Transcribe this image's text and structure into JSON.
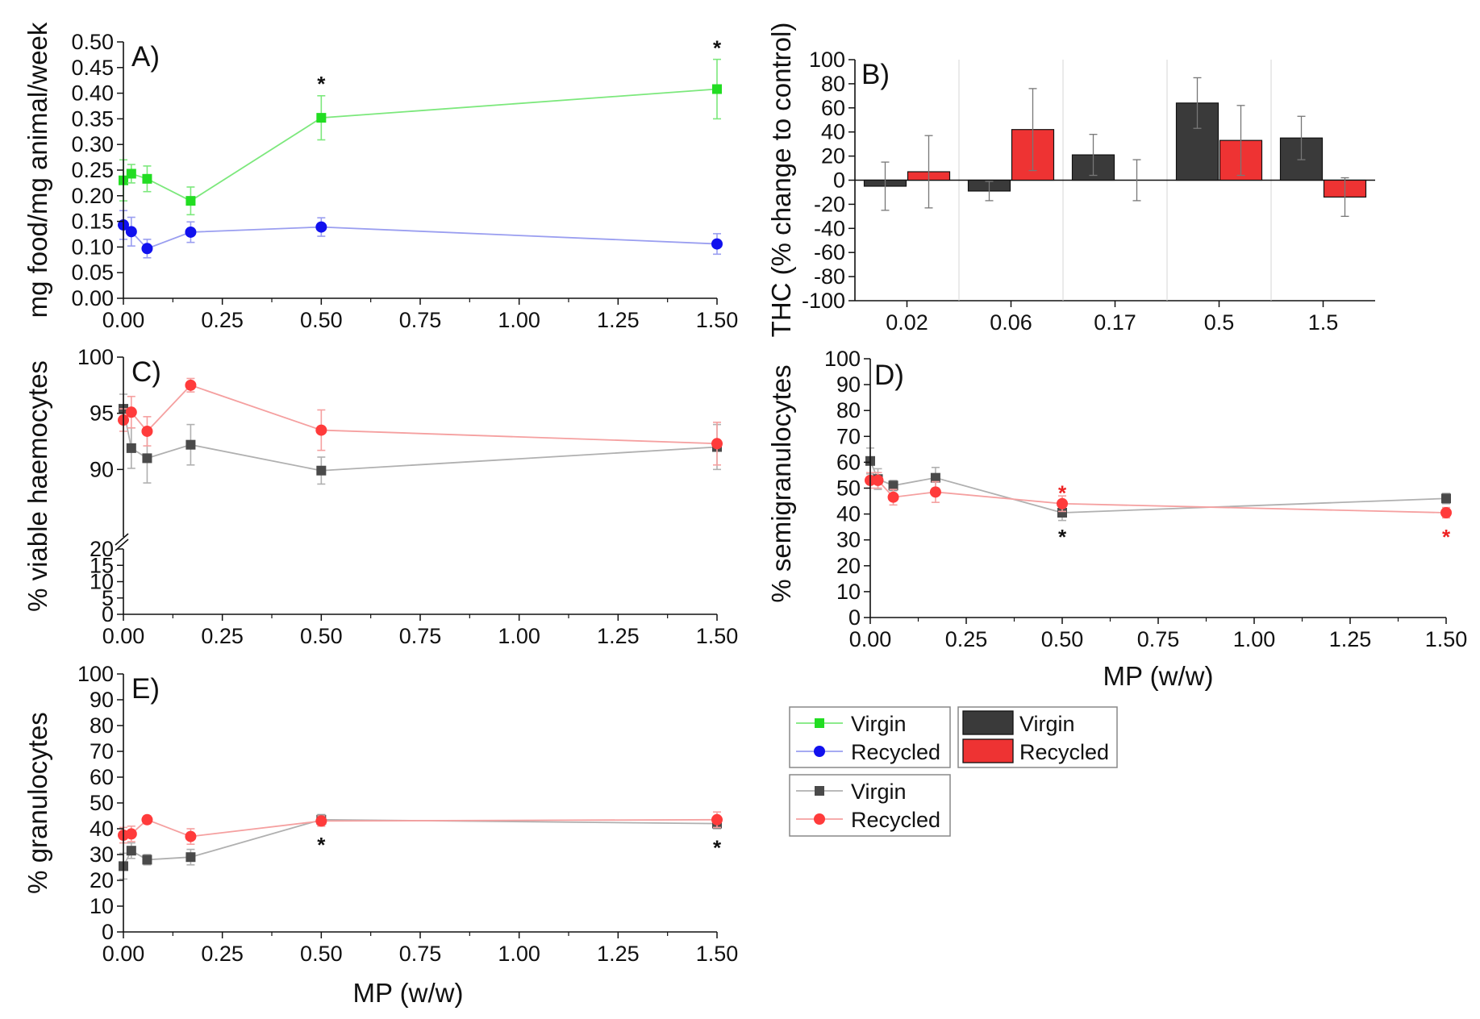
{
  "chart_data": [
    {
      "id": "A",
      "type": "line",
      "panel_label": "A)",
      "ylabel": "mg food/mg animal/week",
      "xlabel": "",
      "xlim": [
        0,
        1.5
      ],
      "ylim": [
        0,
        0.5
      ],
      "xticks": [
        "0.00",
        "0.25",
        "0.50",
        "0.75",
        "1.00",
        "1.25",
        "1.50"
      ],
      "yticks": [
        "0.00",
        "0.05",
        "0.10",
        "0.15",
        "0.20",
        "0.25",
        "0.30",
        "0.35",
        "0.40",
        "0.45",
        "0.50"
      ],
      "series": [
        {
          "name": "Virgin",
          "marker": "square",
          "color": "#22dd22",
          "line": "#7ce87c",
          "x": [
            0,
            0.02,
            0.06,
            0.17,
            0.5,
            1.5
          ],
          "y": [
            0.23,
            0.243,
            0.233,
            0.19,
            0.352,
            0.408
          ],
          "err": [
            0.04,
            0.018,
            0.025,
            0.027,
            0.043,
            0.058
          ]
        },
        {
          "name": "Recycled",
          "marker": "circle",
          "color": "#1111ee",
          "line": "#9a9ef0",
          "x": [
            0,
            0.02,
            0.06,
            0.17,
            0.5,
            1.5
          ],
          "y": [
            0.143,
            0.13,
            0.097,
            0.129,
            0.139,
            0.106
          ],
          "err": [
            0.028,
            0.028,
            0.018,
            0.02,
            0.018,
            0.02
          ]
        }
      ],
      "annotations": [
        {
          "text": "*",
          "x": 0.5,
          "y": 0.42,
          "color": "#111111"
        },
        {
          "text": "*",
          "x": 1.5,
          "y": 0.49,
          "color": "#111111"
        }
      ]
    },
    {
      "id": "B",
      "type": "bar",
      "panel_label": "B)",
      "ylabel": "THC (% change to control)",
      "xlabel": "",
      "categories": [
        "0.02",
        "0.06",
        "0.17",
        "0.5",
        "1.5"
      ],
      "ylim": [
        -100,
        100
      ],
      "yticks": [
        "-100",
        "-80",
        "-60",
        "-40",
        "-20",
        "0",
        "20",
        "40",
        "60",
        "80",
        "100"
      ],
      "series": [
        {
          "name": "Virgin",
          "color": "#3a3a3a",
          "values": [
            -5,
            -9,
            21,
            64,
            35
          ],
          "err": [
            20,
            8,
            17,
            21,
            18
          ]
        },
        {
          "name": "Recycled",
          "color": "#ee3333",
          "values": [
            7,
            42,
            0,
            33,
            -14
          ],
          "err": [
            30,
            34,
            17,
            29,
            16
          ]
        }
      ]
    },
    {
      "id": "C",
      "type": "line",
      "panel_label": "C)",
      "ylabel": "% viable haemocytes",
      "xlabel": "",
      "xlim": [
        0,
        1.5
      ],
      "xticks": [
        "0.00",
        "0.25",
        "0.50",
        "0.75",
        "1.00",
        "1.25",
        "1.50"
      ],
      "upper_ylim": [
        85,
        100
      ],
      "upper_yticks": [
        "90",
        "95",
        "100"
      ],
      "lower_ylim": [
        0,
        20
      ],
      "lower_yticks": [
        "0",
        "5",
        "10",
        "15",
        "20"
      ],
      "series": [
        {
          "name": "Virgin",
          "marker": "square",
          "color": "#4a4a4a",
          "line": "#b0b0b0",
          "x": [
            0,
            0.02,
            0.06,
            0.17,
            0.5,
            1.5
          ],
          "y": [
            95.4,
            91.9,
            91.0,
            92.2,
            89.9,
            92.0
          ],
          "err": [
            1.3,
            1.8,
            2.2,
            1.8,
            1.2,
            2.0
          ]
        },
        {
          "name": "Recycled",
          "marker": "circle",
          "color": "#ff3b3b",
          "line": "#f5a0a0",
          "x": [
            0,
            0.02,
            0.06,
            0.17,
            0.5,
            1.5
          ],
          "y": [
            94.4,
            95.1,
            93.4,
            97.5,
            93.5,
            92.3
          ],
          "err": [
            1.0,
            1.4,
            1.3,
            0.6,
            1.8,
            1.9
          ]
        }
      ]
    },
    {
      "id": "D",
      "type": "line",
      "panel_label": "D)",
      "ylabel": "% semigranulocytes",
      "xlabel": "MP (w/w)",
      "xlim": [
        0,
        1.5
      ],
      "ylim": [
        0,
        100
      ],
      "xticks": [
        "0.00",
        "0.25",
        "0.50",
        "0.75",
        "1.00",
        "1.25",
        "1.50"
      ],
      "yticks": [
        "0",
        "10",
        "20",
        "30",
        "40",
        "50",
        "60",
        "70",
        "80",
        "90",
        "100"
      ],
      "series": [
        {
          "name": "Virgin",
          "marker": "square",
          "color": "#4a4a4a",
          "line": "#b0b0b0",
          "x": [
            0,
            0.02,
            0.06,
            0.17,
            0.5,
            1.5
          ],
          "y": [
            60.5,
            53.5,
            51,
            54,
            40.5,
            46
          ],
          "err": [
            5,
            4,
            2,
            4,
            3,
            2
          ]
        },
        {
          "name": "Recycled",
          "marker": "circle",
          "color": "#ff3b3b",
          "line": "#f5a0a0",
          "x": [
            0,
            0.02,
            0.06,
            0.17,
            0.5,
            1.5
          ],
          "y": [
            53,
            53,
            46.5,
            48.5,
            44,
            40.5
          ],
          "err": [
            3,
            3,
            3,
            4,
            3,
            2
          ]
        }
      ],
      "annotations": [
        {
          "text": "*",
          "x": 0.5,
          "y": 48.5,
          "color": "#ee2222"
        },
        {
          "text": "*",
          "x": 0.5,
          "y": 31.5,
          "color": "#111111"
        },
        {
          "text": "*",
          "x": 1.5,
          "y": 31.5,
          "color": "#ee2222"
        }
      ]
    },
    {
      "id": "E",
      "type": "line",
      "panel_label": "E)",
      "ylabel": "% granulocytes",
      "xlabel": "MP (w/w)",
      "xlim": [
        0,
        1.5
      ],
      "ylim": [
        0,
        100
      ],
      "xticks": [
        "0.00",
        "0.25",
        "0.50",
        "0.75",
        "1.00",
        "1.25",
        "1.50"
      ],
      "yticks": [
        "0",
        "10",
        "20",
        "30",
        "40",
        "50",
        "60",
        "70",
        "80",
        "90",
        "100"
      ],
      "series": [
        {
          "name": "Virgin",
          "marker": "square",
          "color": "#4a4a4a",
          "line": "#b0b0b0",
          "x": [
            0,
            0.02,
            0.06,
            0.17,
            0.5,
            1.5
          ],
          "y": [
            25.5,
            31.5,
            28,
            29,
            43.5,
            42
          ],
          "err": [
            5,
            3,
            2,
            3,
            2,
            2
          ]
        },
        {
          "name": "Recycled",
          "marker": "circle",
          "color": "#ff3b3b",
          "line": "#f5a0a0",
          "x": [
            0,
            0.02,
            0.06,
            0.17,
            0.5,
            1.5
          ],
          "y": [
            37.5,
            38,
            43.5,
            37,
            43,
            43.5
          ],
          "err": [
            3,
            3,
            1.5,
            3,
            2,
            3
          ]
        }
      ],
      "annotations": [
        {
          "text": "*",
          "x": 0.5,
          "y": 34,
          "color": "#111111"
        },
        {
          "text": "*",
          "x": 1.5,
          "y": 33,
          "color": "#111111"
        }
      ]
    }
  ],
  "legends": [
    {
      "id": "legend-food",
      "entries": [
        {
          "label": "Virgin",
          "marker": "square",
          "color": "#22dd22",
          "line": "#7ce87c"
        },
        {
          "label": "Recycled",
          "marker": "circle",
          "color": "#1111ee",
          "line": "#9a9ef0"
        }
      ]
    },
    {
      "id": "legend-bars",
      "entries": [
        {
          "label": "Virgin",
          "marker": "box",
          "color": "#3a3a3a"
        },
        {
          "label": "Recycled",
          "marker": "box",
          "color": "#ee3333"
        }
      ]
    },
    {
      "id": "legend-haemo",
      "entries": [
        {
          "label": "Virgin",
          "marker": "square",
          "color": "#4a4a4a",
          "line": "#b0b0b0"
        },
        {
          "label": "Recycled",
          "marker": "circle",
          "color": "#ff3b3b",
          "line": "#f5a0a0"
        }
      ]
    }
  ]
}
